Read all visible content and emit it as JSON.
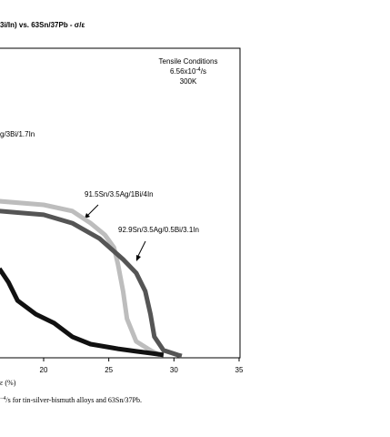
{
  "chart_data": {
    "type": "line",
    "title": "3i/In) vs. 63Sn/37Pb - σ/ε",
    "x_label": "ε   (%)",
    "xlim": [
      0,
      35
    ],
    "xticks": [
      20,
      25,
      30,
      35
    ],
    "ylim": [
      0,
      100
    ],
    "conditions": {
      "heading": "Tensile Conditions",
      "rate_base": "6.56x10",
      "rate_exp": "-4",
      "rate_unit": "/s",
      "temperature": "300K"
    },
    "side_label": "g/3Bi/1.7In",
    "series": [
      {
        "name": "91.5Sn/3.5Ag/1Bi/4In",
        "color": "#bdbdbd",
        "x": [
          16.6,
          20,
          22.2,
          23.6,
          24.7,
          25.4,
          25.7,
          26.1,
          26.4,
          27.1,
          28.2,
          28.9
        ],
        "values": [
          50.6,
          49.4,
          47.4,
          43.5,
          39.7,
          35.6,
          30.3,
          21.5,
          12.6,
          5.3,
          2.4,
          0.9
        ]
      },
      {
        "name": "92.9Sn/3.5Ag/0.5Bi/3.1In",
        "color": "#555555",
        "x": [
          16.6,
          20,
          22.2,
          24.3,
          26.1,
          27.1,
          27.8,
          28.2,
          28.5,
          29.2,
          30.3,
          30.6
        ],
        "values": [
          47.4,
          46.2,
          43.5,
          38.5,
          31.8,
          27.4,
          21.5,
          14.1,
          6.8,
          2.4,
          0.9,
          0.6
        ]
      },
      {
        "color": "#111111",
        "x": [
          16.6,
          17.3,
          18,
          19.4,
          20.8,
          22.2,
          23.6,
          25.7,
          27.1,
          28.2,
          29.2
        ],
        "values": [
          28.8,
          24.4,
          18.5,
          14.1,
          11.2,
          6.8,
          4.4,
          2.9,
          2.1,
          1.5,
          0.9
        ]
      }
    ],
    "caption": {
      "exp": "−4",
      "text": "/s for tin-silver-bismuth alloys and 63Sn/37Pb."
    }
  }
}
